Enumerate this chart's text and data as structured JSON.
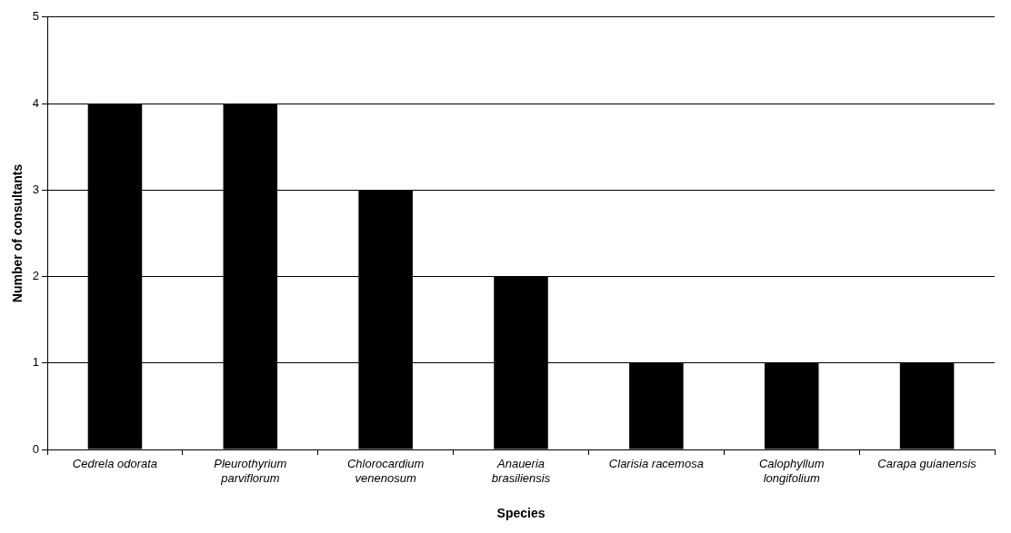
{
  "chart_data": {
    "type": "bar",
    "xlabel": "Species",
    "ylabel": "Number of consultants",
    "categories": [
      "Cedrela odorata",
      "Pleurothyrium parviflorum",
      "Chlorocardium venenosum",
      "Anaueria brasiliensis",
      "Clarisia racemosa",
      "Calophyllum longifolium",
      "Carapa guianensis"
    ],
    "values": [
      4,
      4,
      3,
      2,
      1,
      1,
      1
    ],
    "color": "#000000",
    "ylim": [
      0,
      5
    ],
    "yticks": [
      0,
      1,
      2,
      3,
      4,
      5
    ],
    "grid": "y",
    "legend": false
  }
}
